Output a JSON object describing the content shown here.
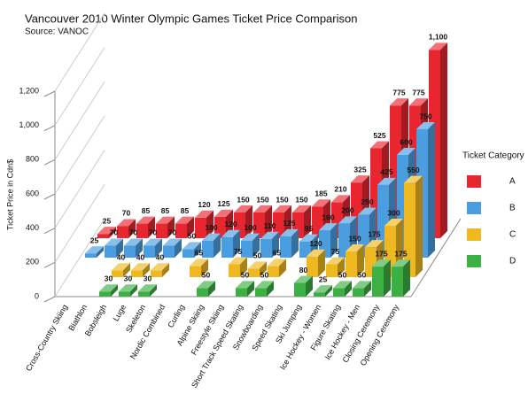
{
  "chart_data": {
    "type": "bar3d",
    "title": "Vancouver 2010 Winter Olympic Games Ticket Price Comparison",
    "subtitle": "Source: VANOC",
    "y_label": "Ticket Price in Cdn$",
    "legend_title": "Ticket Category",
    "categories": [
      "Cross-Country Skiing",
      "Biathlon",
      "Bobsleigh",
      "Luge",
      "Skeleton",
      "Nordic Combined",
      "Curling",
      "Alpine Skiing",
      "Freestyle Skiing",
      "Short Track Speed Skating",
      "Snowboarding",
      "Speed Skating",
      "Ski Jumping",
      "Ice Hockey - Women",
      "Figure Skating",
      "Ice Hockey - Men",
      "Closing Ceremony",
      "Opening Ceremony"
    ],
    "series": [
      {
        "name": "A",
        "color": "#e8262f",
        "values": [
          25,
          70,
          85,
          85,
          85,
          120,
          125,
          150,
          150,
          150,
          150,
          185,
          210,
          325,
          525,
          775,
          775,
          1100
        ],
        "value_labels": [
          "25",
          "70",
          "85",
          "85",
          "85",
          "120",
          "125",
          "150",
          "150",
          "150",
          "150",
          "185",
          "210",
          "325",
          "525",
          "775",
          "775",
          "1,100"
        ]
      },
      {
        "name": "B",
        "color": "#4a9ee0",
        "values": [
          25,
          70,
          70,
          70,
          70,
          50,
          100,
          120,
          100,
          110,
          125,
          95,
          160,
          200,
          250,
          425,
          600,
          750
        ]
      },
      {
        "name": "C",
        "color": "#f0b820",
        "values": [
          null,
          null,
          40,
          40,
          40,
          null,
          65,
          null,
          75,
          50,
          65,
          null,
          120,
          75,
          150,
          175,
          300,
          550
        ]
      },
      {
        "name": "D",
        "color": "#3cb043",
        "values": [
          null,
          null,
          30,
          30,
          30,
          null,
          null,
          50,
          null,
          50,
          50,
          null,
          80,
          25,
          50,
          50,
          175,
          175
        ]
      }
    ],
    "ylim": [
      0,
      1200
    ],
    "yticks": [
      0,
      200,
      400,
      600,
      800,
      {
        "value": 1000,
        "label": "1,000"
      },
      {
        "value": 1200,
        "label": "1,200"
      }
    ],
    "legend": "right"
  }
}
